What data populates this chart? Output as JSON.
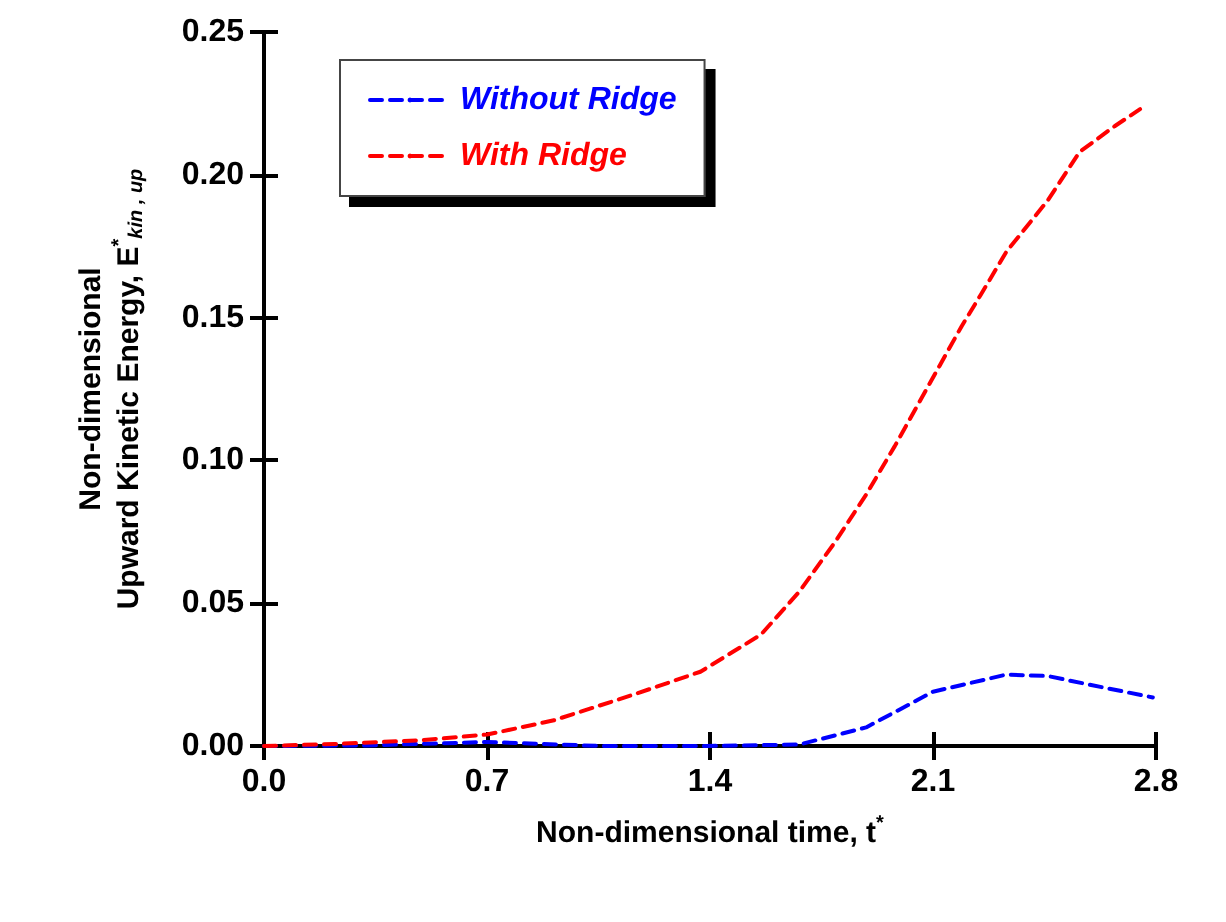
{
  "chart_data": {
    "type": "line",
    "xlabel": "Non-dimensional time, t$^{*}$",
    "ylabel": "Non-dimensional Upward Kinetic Energy, E$^{*}$$_{kin , up}$",
    "xlim": [
      0,
      2.8
    ],
    "xticks": [
      {
        "value": 0,
        "label": "0.0"
      },
      {
        "value": 0.7,
        "label": "0.7"
      },
      {
        "value": 1.4,
        "label": "1.4"
      },
      {
        "value": 2.1,
        "label": "2.1"
      },
      {
        "value": 2.8,
        "label": "2.8"
      }
    ],
    "ylim": [
      0,
      0.25
    ],
    "yticks": [
      {
        "value": 0,
        "label": "0.00"
      },
      {
        "value": 0.05,
        "label": "0.05"
      },
      {
        "value": 0.1,
        "label": "0.10"
      },
      {
        "value": 0.15,
        "label": "0.15"
      },
      {
        "value": 0.2,
        "label": "0.20"
      },
      {
        "value": 0.25,
        "label": "0.25"
      }
    ],
    "grid": false,
    "legend": "top left",
    "marker": "none",
    "line_style": "dashed",
    "series": [
      {
        "name": "Without Ridge",
        "color": "#0000ff",
        "x": [
          0,
          0.32,
          0.7,
          1.06,
          1.39,
          1.68,
          1.89,
          2.1,
          2.33,
          2.46,
          2.63,
          2.79
        ],
        "values": [
          0.0,
          0.0002,
          0.0014,
          0.0,
          0.0,
          0.0005,
          0.0065,
          0.019,
          0.025,
          0.0245,
          0.0206,
          0.017
        ]
      },
      {
        "name": "With Ridge",
        "color": "#ff0000",
        "x": [
          0,
          0.22,
          0.49,
          0.7,
          0.91,
          1.16,
          1.37,
          1.56,
          1.68,
          1.79,
          1.89,
          1.98,
          2.05,
          2.12,
          2.19,
          2.25,
          2.33,
          2.46,
          2.56,
          2.67,
          2.75
        ],
        "values": [
          0.0,
          0.0007,
          0.002,
          0.004,
          0.009,
          0.018,
          0.026,
          0.039,
          0.054,
          0.071,
          0.088,
          0.105,
          0.119,
          0.133,
          0.147,
          0.158,
          0.173,
          0.191,
          0.208,
          0.217,
          0.223
        ]
      }
    ]
  }
}
